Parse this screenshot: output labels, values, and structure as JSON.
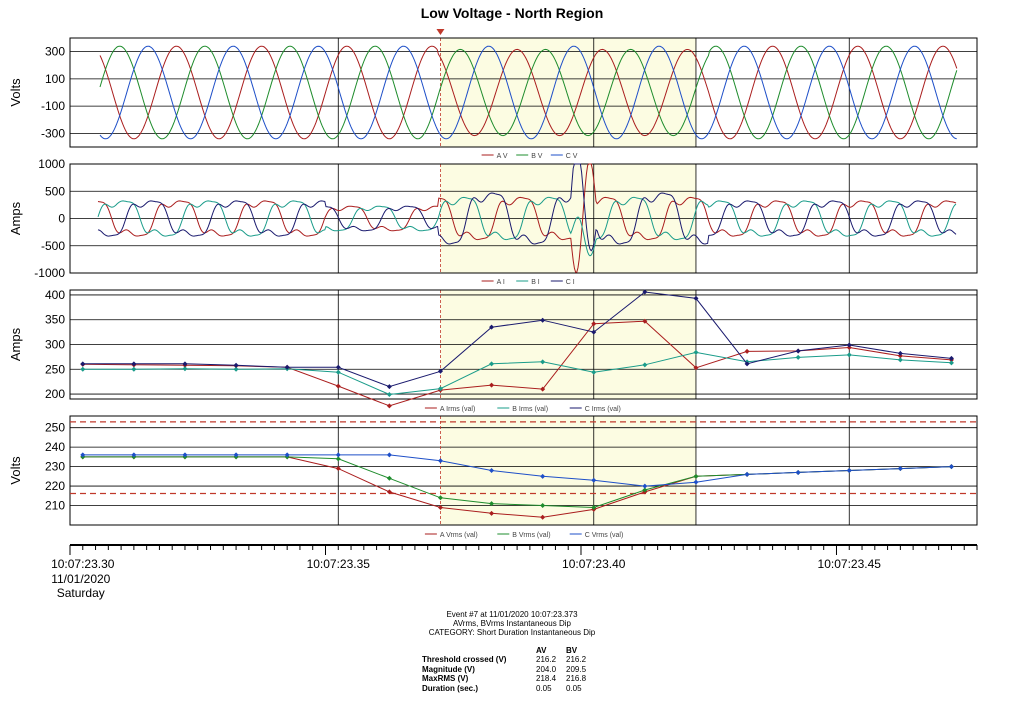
{
  "title": "Low Voltage - North Region",
  "colors": {
    "a": "#aa1e1e",
    "b": "#1e8c2c",
    "c": "#1e4fc8",
    "cdark": "#1a1a6e",
    "bteal": "#1a9c8a",
    "shade": "#fcfce2",
    "marker": "#c0392b"
  },
  "x_axis": {
    "ticks": [
      {
        "label": "10:07:23.30",
        "sub": [
          "11/01/2020",
          "Saturday"
        ]
      },
      {
        "label": "10:07:23.35",
        "sub": []
      },
      {
        "label": "10:07:23.40",
        "sub": []
      },
      {
        "label": "10:07:23.45",
        "sub": []
      }
    ]
  },
  "chart_data": [
    {
      "type": "line",
      "ylabel": "Volts",
      "ylim": [
        -400,
        400
      ],
      "yticks": [
        300,
        100,
        -100,
        -300
      ],
      "series": [
        {
          "name": "A V"
        },
        {
          "name": "B V"
        },
        {
          "name": "C V"
        }
      ],
      "waveform": {
        "amplitude": 340,
        "cycles_per_second": 60
      }
    },
    {
      "type": "line",
      "ylabel": "Amps",
      "ylim": [
        -1000,
        1000
      ],
      "yticks": [
        1000,
        500,
        0,
        -500,
        -1000
      ],
      "series": [
        {
          "name": "A I"
        },
        {
          "name": "B I"
        },
        {
          "name": "C I"
        }
      ]
    },
    {
      "type": "line",
      "ylabel": "Amps",
      "ylim": [
        190,
        410
      ],
      "yticks": [
        400,
        350,
        300,
        250,
        200
      ],
      "x": [
        23.3025,
        23.3125,
        23.3225,
        23.3325,
        23.3425,
        23.3525,
        23.3625,
        23.3725,
        23.3825,
        23.3925,
        23.4025,
        23.4125,
        23.4225,
        23.4325,
        23.4425,
        23.4525,
        23.4625,
        23.4725
      ],
      "series": [
        {
          "name": "A Irms (val)",
          "values": [
            260,
            259,
            258,
            257,
            254,
            216,
            176,
            208,
            218,
            210,
            342,
            347,
            253,
            286,
            287,
            294,
            277,
            269
          ]
        },
        {
          "name": "B Irms (val)",
          "values": [
            250,
            250,
            251,
            250,
            251,
            244,
            199,
            211,
            261,
            265,
            244,
            259,
            284,
            265,
            274,
            279,
            269,
            263
          ]
        },
        {
          "name": "C Irms (val)",
          "values": [
            261,
            261,
            261,
            258,
            254,
            254,
            215,
            246,
            335,
            349,
            325,
            406,
            393,
            261,
            287,
            299,
            282,
            272
          ]
        }
      ]
    },
    {
      "type": "line",
      "ylabel": "Volts",
      "ylim": [
        200,
        256
      ],
      "yticks": [
        250,
        240,
        230,
        220,
        210
      ],
      "threshold_lines": [
        253.0,
        216.2
      ],
      "x": [
        23.3025,
        23.3125,
        23.3225,
        23.3325,
        23.3425,
        23.3525,
        23.3625,
        23.3725,
        23.3825,
        23.3925,
        23.4025,
        23.4125,
        23.4225,
        23.4325,
        23.4425,
        23.4525,
        23.4625,
        23.4725
      ],
      "series": [
        {
          "name": "A Vrms (val)",
          "values": [
            235,
            235,
            235,
            235,
            235,
            229,
            217,
            209,
            206,
            204,
            208,
            217,
            225,
            226,
            227,
            228,
            229,
            230
          ]
        },
        {
          "name": "B Vrms (val)",
          "values": [
            235,
            235,
            235,
            235,
            235,
            234,
            224,
            214,
            211,
            210,
            209,
            218,
            225,
            226,
            227,
            228,
            229,
            230
          ]
        },
        {
          "name": "C Vrms (val)",
          "values": [
            236,
            236,
            236,
            236,
            236,
            236,
            236,
            233,
            228,
            225,
            223,
            220,
            222,
            226,
            227,
            228,
            229,
            230
          ]
        }
      ]
    }
  ],
  "event_region": {
    "x_start": 23.3725,
    "x_mid": 23.3975,
    "x_end": 23.4225
  },
  "summary": {
    "line1": "Event #7 at 11/01/2020 10:07:23.373",
    "line2": "AVrms, BVrms Instantaneous Dip",
    "line3": "CATEGORY: Short Duration Instantaneous Dip",
    "headers": [
      "AV",
      "BV"
    ],
    "rows": [
      {
        "label": "Threshold crossed (V)",
        "av": "216.2",
        "bv": "216.2"
      },
      {
        "label": "Magnitude (V)",
        "av": "204.0",
        "bv": "209.5"
      },
      {
        "label": "MaxRMS (V)",
        "av": "218.4",
        "bv": "216.8"
      },
      {
        "label": "Duration (sec.)",
        "av": "0.05",
        "bv": "0.05"
      }
    ]
  }
}
